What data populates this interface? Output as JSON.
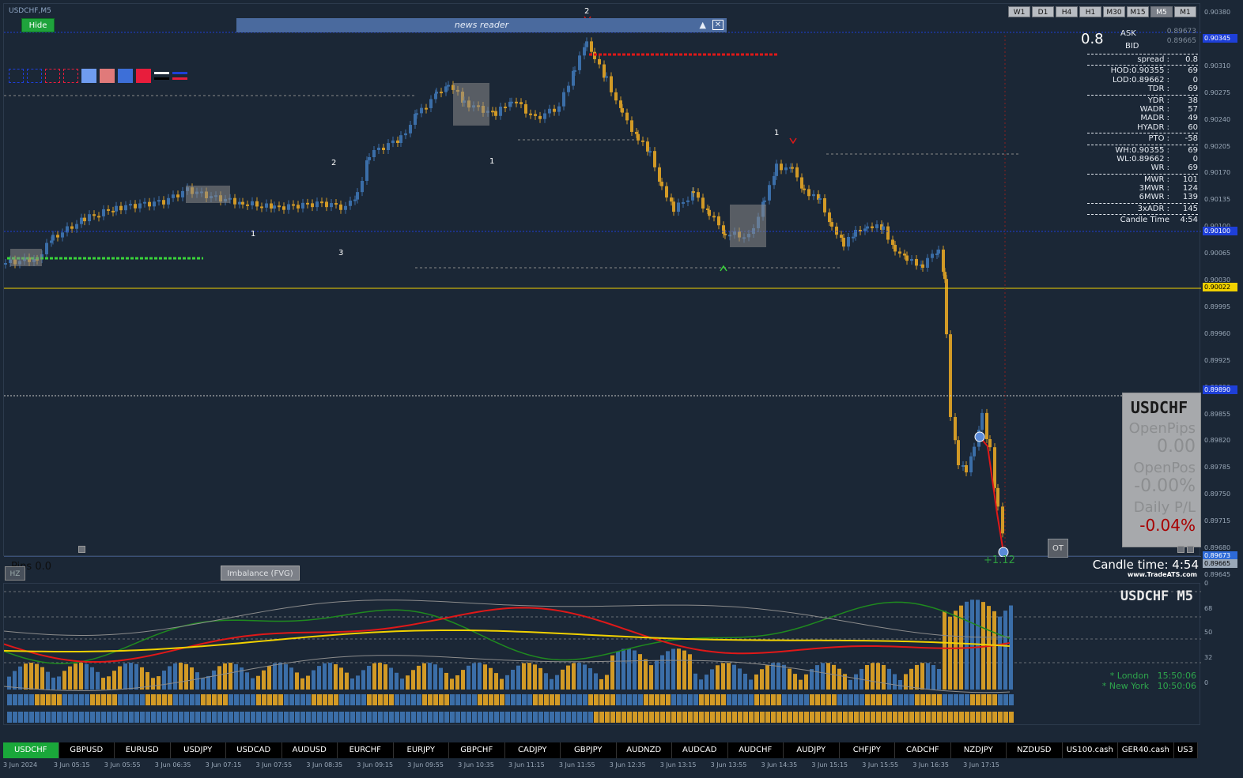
{
  "chart": {
    "title": "USDCHF,M5",
    "hide_label": "Hide"
  },
  "news_reader": {
    "label": "news reader",
    "up_icon": "▲",
    "close_icon": "✕"
  },
  "timeframes": [
    {
      "label": "W1",
      "active": false
    },
    {
      "label": "D1",
      "active": false
    },
    {
      "label": "H4",
      "active": false
    },
    {
      "label": "H1",
      "active": false
    },
    {
      "label": "M30",
      "active": false
    },
    {
      "label": "M15",
      "active": false
    },
    {
      "label": "M5",
      "active": true
    },
    {
      "label": "M1",
      "active": false
    }
  ],
  "swatch_colors": [
    "#1b2736",
    "#1b2736",
    "#1b2736",
    "#1b2736",
    "#6f9cf0",
    "#e07a7a",
    "#3d6fd8",
    "#e81d3c",
    "#ffffff",
    "#1e3fd8"
  ],
  "info_panel": {
    "spread_big": "0.8",
    "ask_label": "ASK",
    "bid_label": "BID",
    "ask_value": "0.89673",
    "bid_value": "0.89665",
    "rows": [
      {
        "k": "spread :",
        "v": "0.8",
        "sep": true
      },
      {
        "k": "HOD:0.90355 :",
        "v": "69",
        "sep": true
      },
      {
        "k": "LOD:0.89662 :",
        "v": "0"
      },
      {
        "k": "TDR :",
        "v": "69"
      },
      {
        "k": "YDR :",
        "v": "38",
        "sep": true
      },
      {
        "k": "WADR :",
        "v": "57"
      },
      {
        "k": "MADR :",
        "v": "49"
      },
      {
        "k": "HYADR :",
        "v": "60"
      },
      {
        "k": "PTO :",
        "v": "-58",
        "sep": true
      },
      {
        "k": "WH:0.90355 :",
        "v": "69",
        "sep": true
      },
      {
        "k": "WL:0.89662 :",
        "v": "0"
      },
      {
        "k": "WR :",
        "v": "69"
      },
      {
        "k": "MWR :",
        "v": "101",
        "sep": true
      },
      {
        "k": "3MWR :",
        "v": "124"
      },
      {
        "k": "6MWR :",
        "v": "139"
      },
      {
        "k": "3xADR :",
        "v": "145",
        "sep": true
      },
      {
        "k": "Candle Time",
        "v": "4:54",
        "sep": true
      }
    ]
  },
  "price_axis": {
    "labels": [
      "0.90380",
      "0.90345",
      "0.90310",
      "0.90275",
      "0.90240",
      "0.90205",
      "0.90170",
      "0.90135",
      "0.90100",
      "0.90065",
      "0.90030",
      "0.89995",
      "0.89960",
      "0.89925",
      "0.89890",
      "0.89855",
      "0.89820",
      "0.89785",
      "0.89750",
      "0.89715",
      "0.89680",
      "0.89645"
    ],
    "tags": [
      {
        "text": "0.90345",
        "bg": "#1e3fd8",
        "fg": "#ffffff"
      },
      {
        "text": "0.90100",
        "bg": "#1e3fd8",
        "fg": "#ffffff"
      },
      {
        "text": "0.90022",
        "bg": "#f1d100",
        "fg": "#000000"
      },
      {
        "text": "0.89890",
        "bg": "#1e3fd8",
        "fg": "#ffffff"
      },
      {
        "text": "0.89673",
        "bg": "#2d6ad8",
        "fg": "#ffffff"
      },
      {
        "text": "0.89665",
        "bg": "#9aa8b8",
        "fg": "#000000"
      }
    ]
  },
  "chart_annotations": {
    "swing_labels": [
      "2",
      "2",
      "1",
      "1",
      "3",
      "1",
      "1"
    ]
  },
  "symbol_box": {
    "symbol": "USDCHF",
    "open_pips_label": "OpenPips",
    "open_pips_value": "0.00",
    "open_pos_label": "OpenPos",
    "open_pos_value": "-0.00%",
    "daily_pl_label": "Daily P/L",
    "daily_pl_value": "-0.04%"
  },
  "buttons": {
    "ot": "OT",
    "hz": "HZ",
    "imbalance": "Imbalance (FVG)"
  },
  "status": {
    "pips": "Pips 0.0",
    "candle_time": "Candle time:  4:54",
    "brand": "www.TradeATS.com",
    "pl_float": "+1.12"
  },
  "indicator": {
    "title": "USDCHF  M5",
    "levels": [
      "0",
      "68",
      "50",
      "32",
      "0"
    ],
    "sessions": [
      {
        "name": "* London",
        "time": "15:50:06"
      },
      {
        "name": "* New York",
        "time": "10:50:06"
      }
    ]
  },
  "symbols": [
    {
      "label": "USDCHF",
      "active": true
    },
    {
      "label": "GBPUSD"
    },
    {
      "label": "EURUSD"
    },
    {
      "label": "USDJPY"
    },
    {
      "label": "USDCAD"
    },
    {
      "label": "AUDUSD"
    },
    {
      "label": "EURCHF"
    },
    {
      "label": "EURJPY"
    },
    {
      "label": "GBPCHF"
    },
    {
      "label": "CADJPY"
    },
    {
      "label": "GBPJPY"
    },
    {
      "label": "AUDNZD"
    },
    {
      "label": "AUDCAD"
    },
    {
      "label": "AUDCHF"
    },
    {
      "label": "AUDJPY"
    },
    {
      "label": "CHFJPY"
    },
    {
      "label": "CADCHF"
    },
    {
      "label": "NZDJPY"
    },
    {
      "label": "NZDUSD"
    },
    {
      "label": "US100.cash"
    },
    {
      "label": "GER40.cash"
    },
    {
      "label": "US3",
      "narrow": true
    }
  ],
  "time_axis": [
    "3 Jun 2024",
    "3 Jun 05:15",
    "3 Jun 05:55",
    "3 Jun 06:35",
    "3 Jun 07:15",
    "3 Jun 07:55",
    "3 Jun 08:35",
    "3 Jun 09:15",
    "3 Jun 09:55",
    "3 Jun 10:35",
    "3 Jun 11:15",
    "3 Jun 11:55",
    "3 Jun 12:35",
    "3 Jun 13:15",
    "3 Jun 13:55",
    "3 Jun 14:35",
    "3 Jun 15:15",
    "3 Jun 15:55",
    "3 Jun 16:35",
    "3 Jun 17:15"
  ],
  "colors": {
    "bull": "#3b6ea8",
    "bear": "#d29a26",
    "yellow_line": "#f1d100",
    "blue_line": "#1e3fd8",
    "green_line": "#3ad33a",
    "red_line": "#e01818"
  }
}
